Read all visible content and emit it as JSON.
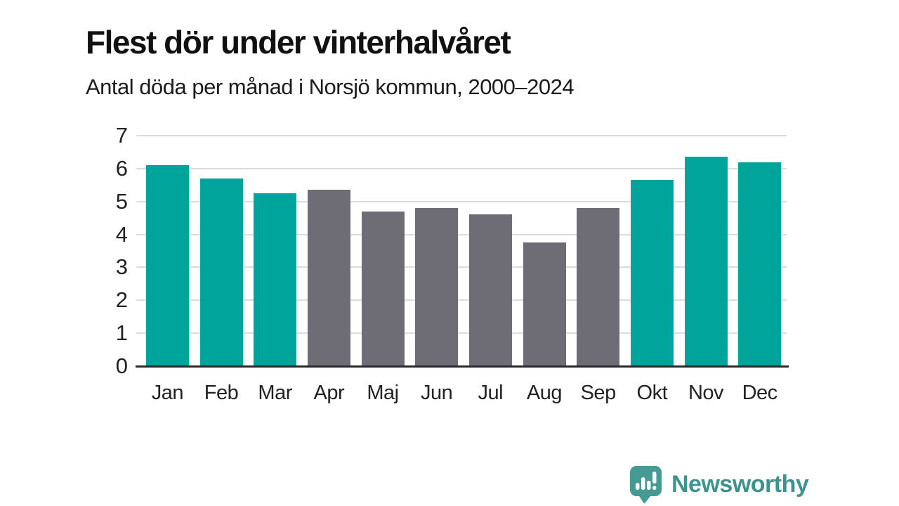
{
  "header": {
    "title": "Flest dör under vinterhalvåret",
    "subtitle": "Antal döda per månad i Norsjö kommun, 2000–2024"
  },
  "chart_data": {
    "type": "bar",
    "categories": [
      "Jan",
      "Feb",
      "Mar",
      "Apr",
      "Maj",
      "Jun",
      "Jul",
      "Aug",
      "Sep",
      "Okt",
      "Nov",
      "Dec"
    ],
    "values": [
      6.1,
      5.7,
      5.25,
      5.35,
      4.7,
      4.8,
      4.6,
      3.75,
      4.8,
      5.65,
      6.35,
      6.2
    ],
    "bar_colors": [
      "teal",
      "teal",
      "teal",
      "gray",
      "gray",
      "gray",
      "gray",
      "gray",
      "gray",
      "teal",
      "teal",
      "teal"
    ],
    "title": "Flest dör under vinterhalvåret",
    "subtitle": "Antal döda per månad i Norsjö kommun, 2000–2024",
    "xlabel": "",
    "ylabel": "",
    "ylim": [
      0,
      7
    ],
    "yticks": [
      0,
      1,
      2,
      3,
      4,
      5,
      6,
      7
    ],
    "grid": true,
    "legend": false
  },
  "colors": {
    "teal": "#00a49b",
    "gray": "#6e6c74",
    "gridline": "#dcdcdc",
    "axis": "#2b2b2b",
    "text": "#1b1b1b",
    "brand": "#3b948e",
    "brand_icon": "#459a93"
  },
  "footer": {
    "brand": "Newsworthy"
  },
  "icons": {
    "brand_icon_name": "newsworthy-bar-chart-bubble-icon"
  }
}
